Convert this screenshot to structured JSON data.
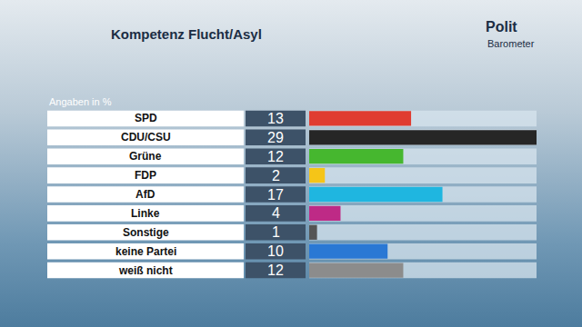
{
  "chart_data": {
    "type": "bar",
    "orientation": "horizontal",
    "title": "Kompetenz Flucht/Asyl",
    "subtitle": "Angaben in %",
    "logo": [
      "Polit",
      "Barometer"
    ],
    "categories": [
      "SPD",
      "CDU/CSU",
      "Grüne",
      "FDP",
      "AfD",
      "Linke",
      "Sonstige",
      "keine Partei",
      "weiß nicht"
    ],
    "values": [
      13,
      29,
      12,
      2,
      17,
      4,
      1,
      10,
      12
    ],
    "colors": [
      "#e03c31",
      "#262626",
      "#46b72f",
      "#f5c518",
      "#1fb6e0",
      "#be2a86",
      "#555555",
      "#2a78d4",
      "#8c8c8c"
    ],
    "xlim": [
      0,
      29
    ],
    "data_labels": true,
    "tick_labels": false,
    "grid": false
  }
}
